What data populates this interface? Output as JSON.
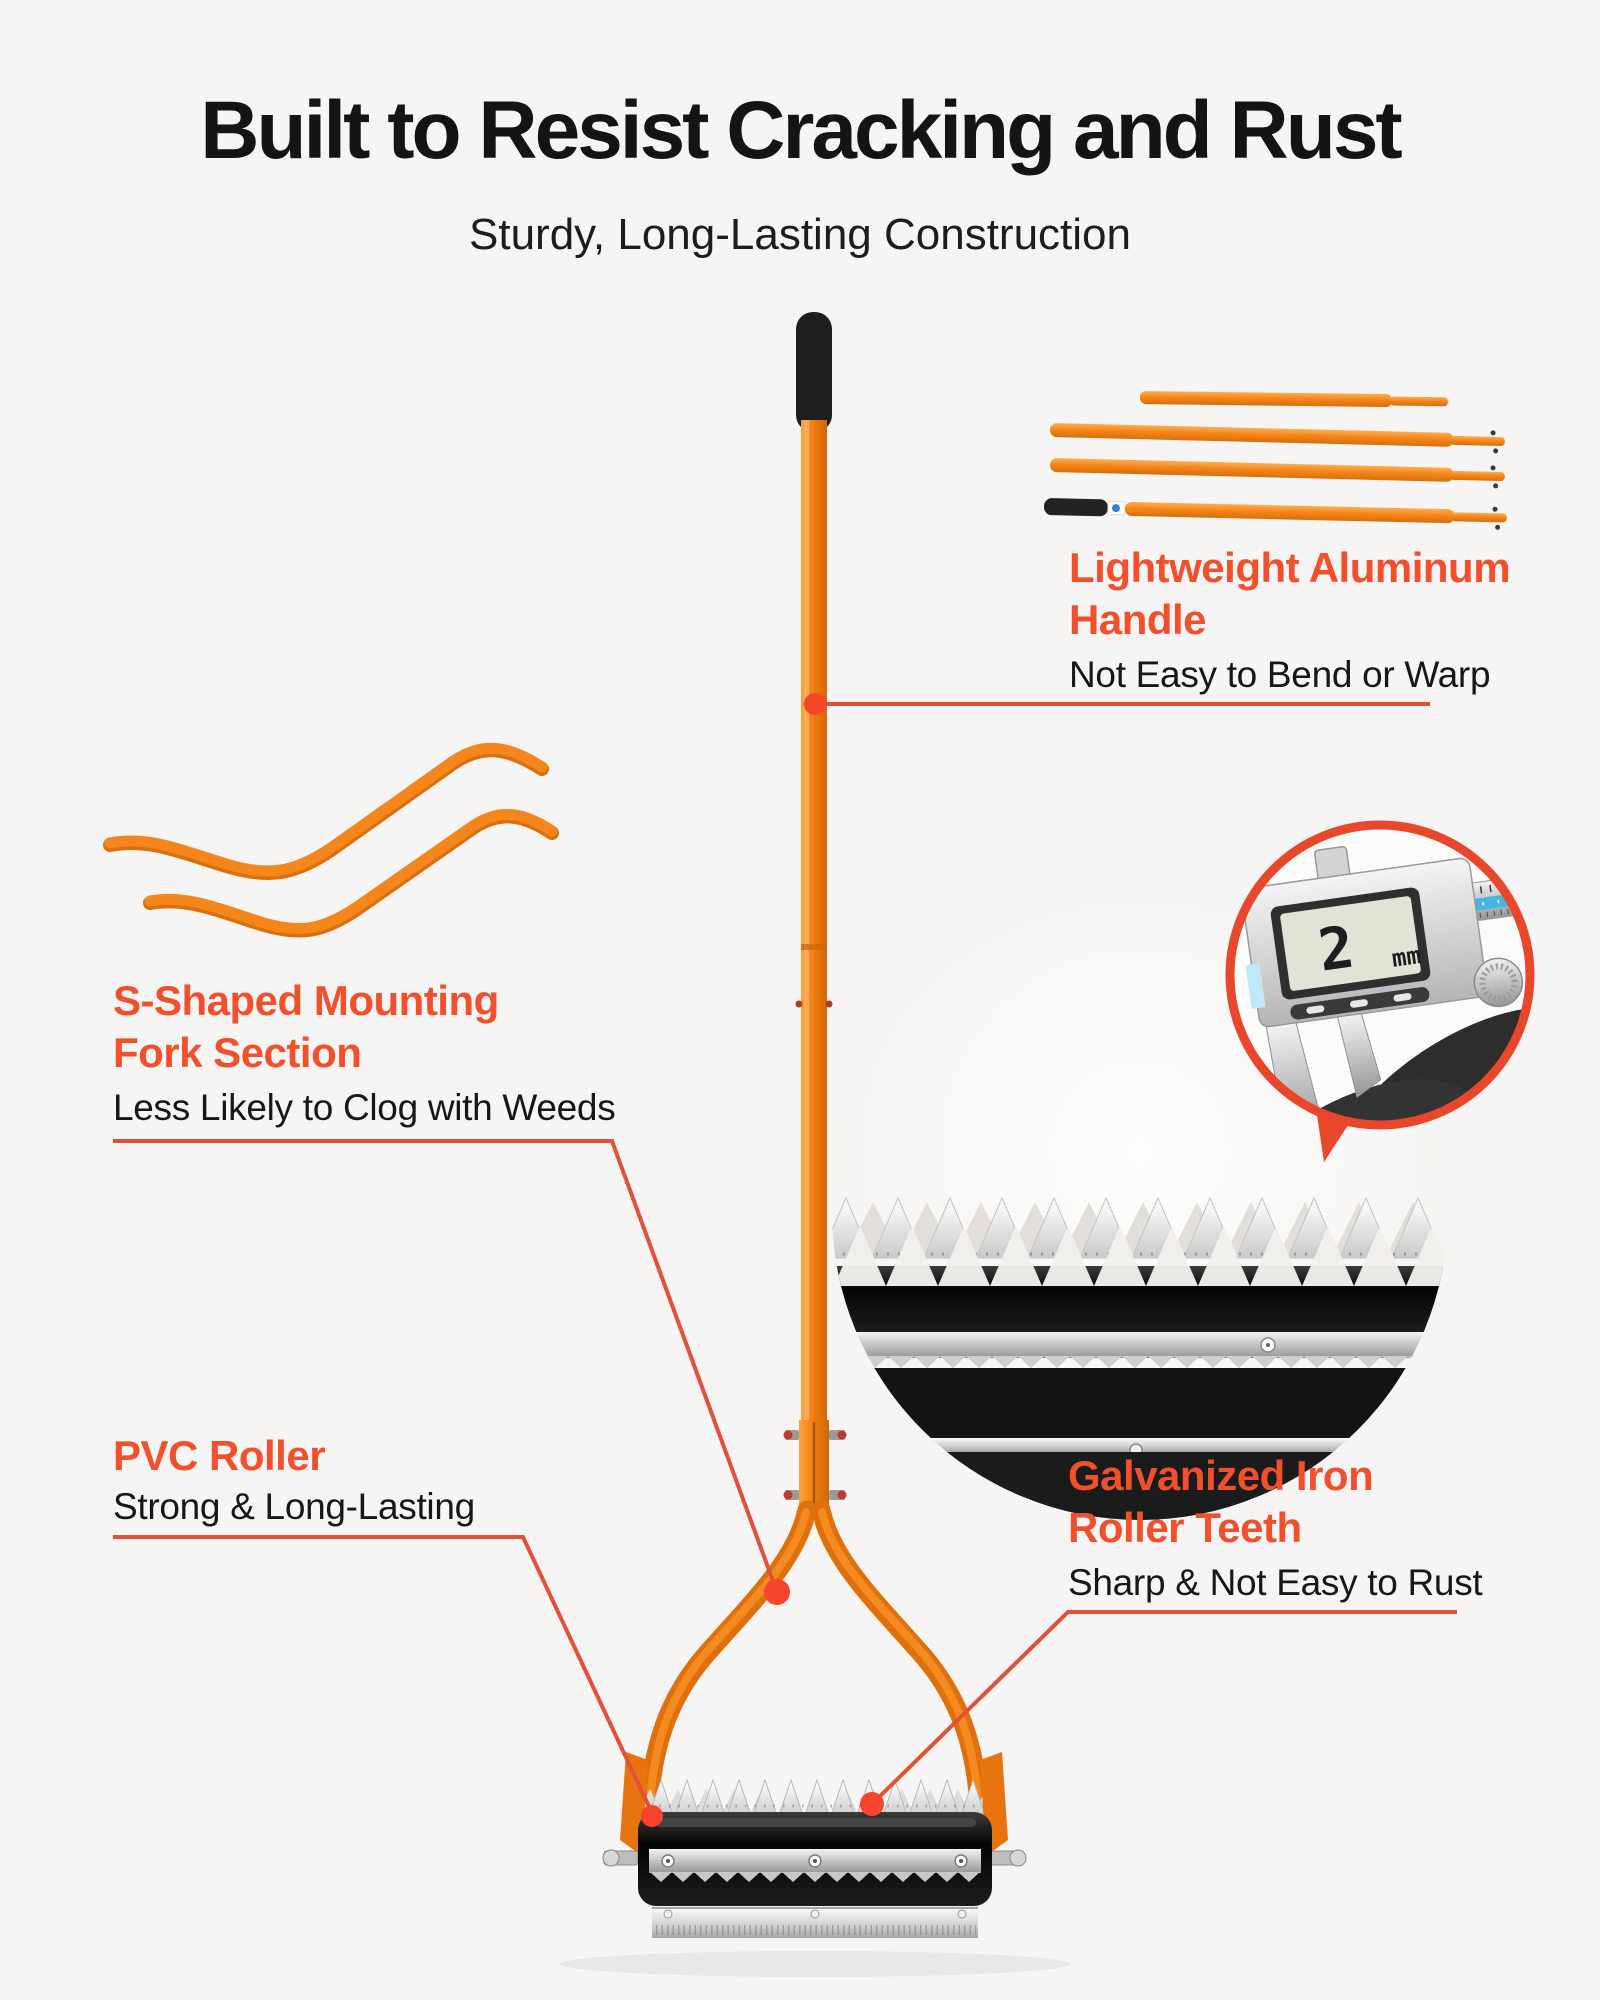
{
  "page": {
    "background": "#f6f5f3"
  },
  "header": {
    "title": "Built to Resist Cracking and Rust",
    "subtitle": "Sturdy, Long-Lasting Construction"
  },
  "callouts": {
    "handle": {
      "heading_line1": "Lightweight Aluminum",
      "heading_line2": "Handle",
      "body": "Not Easy to Bend or Warp"
    },
    "fork": {
      "heading_line1": "S-Shaped Mounting",
      "heading_line2": "Fork Section",
      "body": "Less Likely to Clog with Weeds"
    },
    "pvc_roller": {
      "heading": "PVC Roller",
      "body": "Strong & Long-Lasting"
    },
    "teeth": {
      "heading_line1": "Galvanized Iron",
      "heading_line2": "Roller Teeth",
      "body": "Sharp & Not Easy to Rust"
    }
  },
  "insets": {
    "caliper": {
      "reading": "2",
      "unit": "mm"
    }
  },
  "colors": {
    "accent_heading": "#f2502c",
    "callout_line": "#e2503a",
    "callout_dot": "#f5462b",
    "tool_orange": "#f5861b",
    "background": "#f6f5f3",
    "inset_ring": "#e8472b"
  }
}
